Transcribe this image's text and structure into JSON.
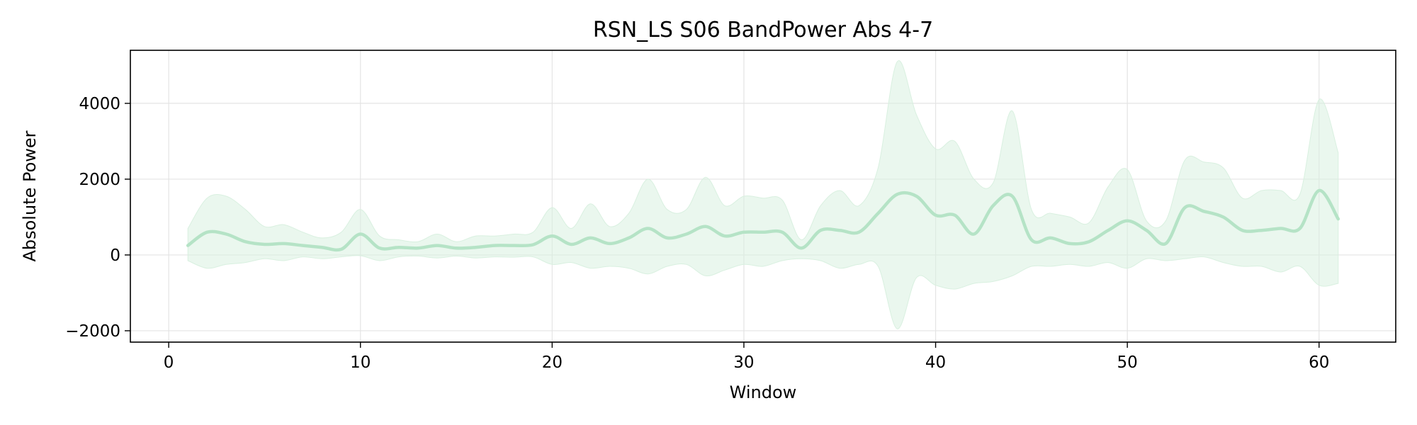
{
  "chart_data": {
    "type": "line",
    "title": "RSN_LS S06 BandPower Abs 4-7",
    "xlabel": "Window",
    "ylabel": "Absolute Power",
    "xlim": [
      -2,
      64
    ],
    "ylim": [
      -2300,
      5400
    ],
    "xticks": [
      0,
      10,
      20,
      30,
      40,
      50,
      60
    ],
    "yticks": [
      -2000,
      0,
      2000,
      4000
    ],
    "ytick_labels": [
      "−2000",
      "0",
      "2000",
      "4000"
    ],
    "grid": true,
    "line_color": "#b5e3c6",
    "band_color": "#d9f0e0",
    "series": [
      {
        "x": [
          1,
          2,
          3,
          4,
          5,
          6,
          7,
          8,
          9,
          10,
          11,
          12,
          13,
          14,
          15,
          16,
          17,
          18,
          19,
          20,
          21,
          22,
          23,
          24,
          25,
          26,
          27,
          28,
          29,
          30,
          31,
          32,
          33,
          34,
          35,
          36,
          37,
          38,
          39,
          40,
          41,
          42,
          43,
          44,
          45,
          46,
          47,
          48,
          49,
          50,
          51,
          52,
          53,
          54,
          55,
          56,
          57,
          58,
          59,
          60,
          61
        ],
        "mean": [
          250,
          600,
          550,
          350,
          280,
          300,
          250,
          200,
          150,
          550,
          180,
          200,
          180,
          250,
          180,
          200,
          250,
          250,
          270,
          500,
          280,
          450,
          300,
          450,
          700,
          450,
          550,
          750,
          500,
          600,
          600,
          600,
          180,
          650,
          650,
          600,
          1100,
          1600,
          1550,
          1050,
          1050,
          550,
          1300,
          1550,
          400,
          450,
          300,
          350,
          650,
          900,
          650,
          300,
          1250,
          1150,
          1000,
          650,
          650,
          700,
          700,
          1700,
          950
        ],
        "upper": [
          700,
          1500,
          1550,
          1200,
          750,
          800,
          600,
          450,
          600,
          1200,
          500,
          400,
          350,
          550,
          350,
          500,
          500,
          550,
          600,
          1250,
          700,
          1350,
          750,
          1100,
          2000,
          1200,
          1200,
          2050,
          1300,
          1550,
          1500,
          1450,
          400,
          1300,
          1700,
          1300,
          2300,
          5100,
          3700,
          2800,
          3000,
          2000,
          1900,
          3800,
          1200,
          1100,
          1000,
          850,
          1800,
          2250,
          900,
          900,
          2500,
          2450,
          2300,
          1500,
          1700,
          1700,
          1600,
          4100,
          2700
        ],
        "lower": [
          -150,
          -350,
          -250,
          -200,
          -100,
          -150,
          -50,
          -100,
          -50,
          -20,
          -150,
          -50,
          -30,
          -80,
          -30,
          -80,
          -50,
          -60,
          -50,
          -250,
          -200,
          -350,
          -300,
          -350,
          -500,
          -300,
          -250,
          -550,
          -400,
          -250,
          -300,
          -150,
          -100,
          -150,
          -350,
          -250,
          -300,
          -1950,
          -600,
          -800,
          -900,
          -750,
          -700,
          -550,
          -300,
          -300,
          -250,
          -300,
          -200,
          -350,
          -100,
          -150,
          -100,
          -50,
          -200,
          -300,
          -300,
          -450,
          -300,
          -800,
          -750
        ]
      }
    ]
  }
}
